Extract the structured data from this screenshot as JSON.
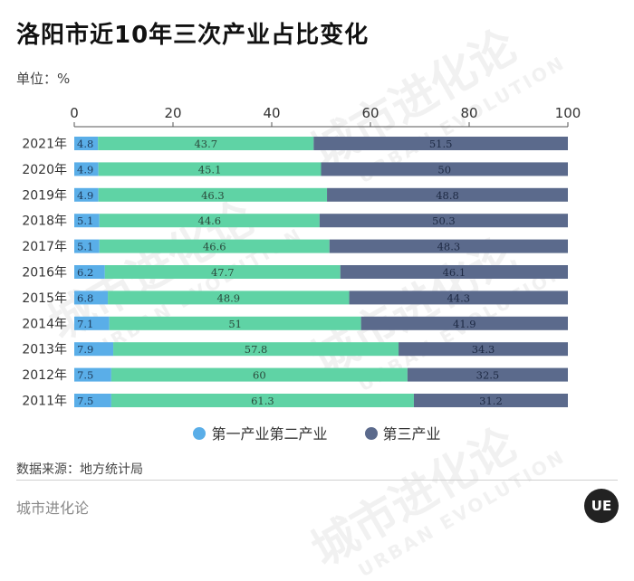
{
  "header": {
    "title": "洛阳市近10年三次产业占比变化",
    "unit": "单位：%"
  },
  "chart_data": {
    "type": "bar",
    "stacked": true,
    "orientation": "horizontal",
    "categories": [
      "2021年",
      "2020年",
      "2019年",
      "2018年",
      "2017年",
      "2016年",
      "2015年",
      "2014年",
      "2013年",
      "2012年",
      "2011年"
    ],
    "series": [
      {
        "name": "第一产业",
        "color": "#5aaee8",
        "values": [
          4.8,
          4.9,
          4.9,
          5.1,
          5.1,
          6.2,
          6.8,
          7.1,
          7.9,
          7.5,
          7.5
        ]
      },
      {
        "name": "第二产业",
        "color": "#5fd3a5",
        "values": [
          43.7,
          45.1,
          46.3,
          44.6,
          46.6,
          47.7,
          48.9,
          51,
          57.8,
          60,
          61.3
        ]
      },
      {
        "name": "第三产业",
        "color": "#5b6a8c",
        "values": [
          51.5,
          50,
          48.8,
          50.3,
          48.3,
          46.1,
          44.3,
          41.9,
          34.3,
          32.5,
          31.2
        ]
      }
    ],
    "xlim": [
      0,
      100
    ],
    "xticks": [
      0,
      20,
      40,
      60,
      80,
      100
    ],
    "xaxis_position": "top",
    "grid": false
  },
  "legend": {
    "primary_secondary_label": "第一产业第二产业",
    "primary_secondary_color": "#5aaee8",
    "tertiary_label": "第三产业",
    "tertiary_color": "#5b6a8c"
  },
  "footer": {
    "source": "数据来源：地方统计局",
    "brand": "城市进化论",
    "logo": "UE"
  },
  "watermark": {
    "cn": "城市进化论",
    "en": "URBAN EVOLUTION"
  }
}
